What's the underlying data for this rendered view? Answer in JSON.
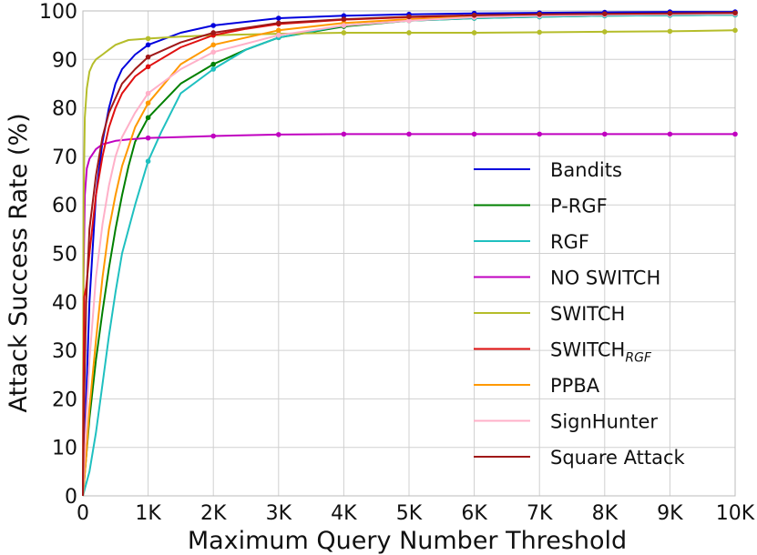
{
  "chart_data": {
    "type": "line",
    "title": "",
    "xlabel": "Maximum Query Number Threshold",
    "ylabel": "Attack Success Rate (%)",
    "xlim": [
      0,
      10000
    ],
    "ylim": [
      0,
      100
    ],
    "xticks": [
      0,
      1000,
      2000,
      3000,
      4000,
      5000,
      6000,
      7000,
      8000,
      9000,
      10000
    ],
    "xtick_labels": [
      "0",
      "1K",
      "2K",
      "3K",
      "4K",
      "5K",
      "6K",
      "7K",
      "8K",
      "9K",
      "10K"
    ],
    "yticks": [
      0,
      10,
      20,
      30,
      40,
      50,
      60,
      70,
      80,
      90,
      100
    ],
    "ytick_labels": [
      "0",
      "10",
      "20",
      "30",
      "40",
      "50",
      "60",
      "70",
      "80",
      "90",
      "100"
    ],
    "grid": true,
    "legend_position": "lower-right",
    "marker_every": 1000,
    "series": [
      {
        "name": "Bandits",
        "color": "#0000dd",
        "x": [
          0,
          50,
          100,
          200,
          300,
          400,
          500,
          600,
          800,
          1000,
          1500,
          2000,
          3000,
          4000,
          5000,
          6000,
          7000,
          8000,
          9000,
          10000
        ],
        "y": [
          0,
          20,
          40,
          62,
          73,
          80,
          85,
          88,
          91,
          93,
          95.5,
          97,
          98.5,
          99,
          99.3,
          99.5,
          99.6,
          99.7,
          99.8,
          99.8
        ]
      },
      {
        "name": "P-RGF",
        "color": "#008000",
        "x": [
          0,
          50,
          100,
          200,
          300,
          400,
          500,
          600,
          700,
          800,
          1000,
          1500,
          2000,
          2500,
          3000,
          4000,
          5000,
          6000,
          7000,
          8000,
          9000,
          10000
        ],
        "y": [
          0,
          8,
          16,
          28,
          38,
          47,
          55,
          62,
          68,
          73,
          78,
          85,
          89,
          92,
          94.5,
          96.8,
          98,
          98.5,
          98.8,
          99,
          99.1,
          99.2
        ]
      },
      {
        "name": "RGF",
        "color": "#1fc0c0",
        "x": [
          0,
          100,
          200,
          300,
          400,
          500,
          600,
          800,
          1000,
          1200,
          1500,
          2000,
          2500,
          3000,
          4000,
          5000,
          6000,
          7000,
          8000,
          9000,
          10000
        ],
        "y": [
          0,
          5,
          13,
          23,
          33,
          42,
          50,
          60,
          69,
          75,
          83,
          88,
          92,
          94.5,
          97,
          98,
          98.5,
          98.8,
          99,
          99.1,
          99.2
        ]
      },
      {
        "name": "NO SWITCH",
        "color": "#c000c0",
        "x": [
          0,
          10,
          30,
          60,
          100,
          200,
          300,
          500,
          700,
          1000,
          1500,
          2000,
          3000,
          4000,
          5000,
          6000,
          7000,
          8000,
          9000,
          10000
        ],
        "y": [
          0,
          45,
          62,
          67.5,
          69.5,
          71.5,
          72.5,
          73.2,
          73.5,
          73.8,
          74.0,
          74.2,
          74.5,
          74.6,
          74.6,
          74.6,
          74.6,
          74.6,
          74.6,
          74.6
        ]
      },
      {
        "name": "SWITCH",
        "color": "#b5bd2a",
        "x": [
          0,
          10,
          30,
          60,
          100,
          150,
          200,
          300,
          400,
          500,
          700,
          1000,
          1500,
          2000,
          3000,
          4000,
          5000,
          6000,
          7000,
          8000,
          9000,
          10000
        ],
        "y": [
          0,
          60,
          78,
          84,
          87.5,
          89,
          90,
          91,
          92,
          93,
          94,
          94.3,
          94.7,
          95,
          95.3,
          95.5,
          95.5,
          95.5,
          95.6,
          95.7,
          95.8,
          96
        ]
      },
      {
        "name": "SWITCH",
        "name_subscript": "RGF",
        "color": "#e01010",
        "x": [
          0,
          20,
          50,
          100,
          200,
          300,
          400,
          500,
          600,
          800,
          1000,
          1500,
          2000,
          2500,
          3000,
          4000,
          5000,
          6000,
          7000,
          8000,
          9000,
          10000
        ],
        "y": [
          0,
          41,
          43,
          50,
          62,
          70,
          76,
          80,
          83,
          86.5,
          88.5,
          92.5,
          95,
          96.3,
          97.3,
          98.2,
          98.7,
          99,
          99.2,
          99.3,
          99.4,
          99.5
        ]
      },
      {
        "name": "PPBA",
        "color": "#ff9900",
        "x": [
          0,
          50,
          100,
          200,
          300,
          400,
          500,
          600,
          800,
          1000,
          1500,
          2000,
          3000,
          4000,
          5000,
          6000,
          7000,
          8000,
          9000,
          10000
        ],
        "y": [
          0,
          8,
          18,
          32,
          45,
          55,
          62,
          68,
          76,
          81,
          89,
          93,
          96,
          97.5,
          98.3,
          98.8,
          99.1,
          99.3,
          99.4,
          99.5
        ]
      },
      {
        "name": "SignHunter",
        "color": "#ffb0c8",
        "x": [
          0,
          50,
          100,
          200,
          300,
          400,
          500,
          600,
          800,
          1000,
          1500,
          2000,
          3000,
          4000,
          5000,
          6000,
          7000,
          8000,
          9000,
          10000
        ],
        "y": [
          0,
          15,
          28,
          45,
          56,
          64,
          70,
          74,
          79,
          83,
          88,
          91.5,
          95,
          97,
          98,
          98.7,
          99,
          99.2,
          99.3,
          99.4
        ]
      },
      {
        "name": "Square Attack",
        "color": "#a01818",
        "x": [
          0,
          20,
          50,
          100,
          200,
          300,
          400,
          500,
          600,
          800,
          1000,
          1500,
          2000,
          3000,
          4000,
          5000,
          6000,
          7000,
          8000,
          9000,
          10000
        ],
        "y": [
          0,
          20,
          40,
          55,
          66,
          74,
          79,
          82,
          85,
          88,
          90.5,
          93.5,
          95.5,
          97.5,
          98.3,
          98.8,
          99.1,
          99.3,
          99.4,
          99.5,
          99.6
        ]
      }
    ]
  }
}
